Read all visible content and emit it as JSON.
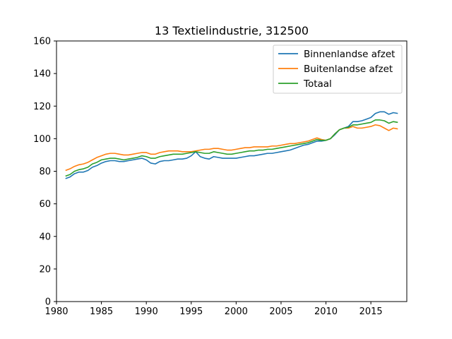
{
  "chart_data": {
    "type": "line",
    "title": "13 Textielindustrie, 312500",
    "xlabel": "",
    "ylabel": "",
    "xlim": [
      1980,
      2019
    ],
    "ylim": [
      0,
      160
    ],
    "x_ticks": [
      1980,
      1985,
      1990,
      1995,
      2000,
      2005,
      2010,
      2015
    ],
    "y_ticks": [
      0,
      20,
      40,
      60,
      80,
      100,
      120,
      140,
      160
    ],
    "grid": false,
    "legend_position": "top-right",
    "series": [
      {
        "name": "Binnenlandse afzet",
        "color": "#1f77b4",
        "points": [
          [
            1981.0,
            75.5
          ],
          [
            1981.5,
            76.5
          ],
          [
            1982.0,
            78.5
          ],
          [
            1982.5,
            79.5
          ],
          [
            1983.0,
            79.5
          ],
          [
            1983.5,
            80.5
          ],
          [
            1984.0,
            82.5
          ],
          [
            1984.5,
            83.5
          ],
          [
            1985.0,
            85.0
          ],
          [
            1985.5,
            86.0
          ],
          [
            1986.0,
            86.5
          ],
          [
            1986.5,
            86.5
          ],
          [
            1987.0,
            86.0
          ],
          [
            1987.5,
            86.0
          ],
          [
            1988.0,
            86.5
          ],
          [
            1988.5,
            87.0
          ],
          [
            1989.0,
            87.5
          ],
          [
            1989.5,
            88.0
          ],
          [
            1990.0,
            87.0
          ],
          [
            1990.5,
            85.0
          ],
          [
            1991.0,
            84.5
          ],
          [
            1991.5,
            86.0
          ],
          [
            1992.0,
            86.5
          ],
          [
            1992.5,
            86.5
          ],
          [
            1993.0,
            87.0
          ],
          [
            1993.5,
            87.5
          ],
          [
            1994.0,
            87.5
          ],
          [
            1994.5,
            88.0
          ],
          [
            1995.0,
            89.5
          ],
          [
            1995.5,
            92.0
          ],
          [
            1996.0,
            89.0
          ],
          [
            1996.5,
            88.0
          ],
          [
            1997.0,
            87.5
          ],
          [
            1997.5,
            89.0
          ],
          [
            1998.0,
            88.5
          ],
          [
            1998.5,
            88.0
          ],
          [
            1999.0,
            88.0
          ],
          [
            1999.5,
            88.0
          ],
          [
            2000.0,
            88.0
          ],
          [
            2000.5,
            88.5
          ],
          [
            2001.0,
            89.0
          ],
          [
            2001.5,
            89.5
          ],
          [
            2002.0,
            89.5
          ],
          [
            2002.5,
            90.0
          ],
          [
            2003.0,
            90.5
          ],
          [
            2003.5,
            91.0
          ],
          [
            2004.0,
            91.0
          ],
          [
            2004.5,
            91.5
          ],
          [
            2005.0,
            92.0
          ],
          [
            2005.5,
            92.5
          ],
          [
            2006.0,
            93.0
          ],
          [
            2006.5,
            94.0
          ],
          [
            2007.0,
            95.0
          ],
          [
            2007.5,
            96.0
          ],
          [
            2008.0,
            96.5
          ],
          [
            2008.5,
            97.5
          ],
          [
            2009.0,
            98.5
          ],
          [
            2009.5,
            98.5
          ],
          [
            2010.0,
            99.0
          ],
          [
            2010.5,
            100.0
          ],
          [
            2011.0,
            102.5
          ],
          [
            2011.5,
            105.5
          ],
          [
            2012.0,
            106.5
          ],
          [
            2012.5,
            107.5
          ],
          [
            2013.0,
            110.5
          ],
          [
            2013.5,
            110.5
          ],
          [
            2014.0,
            111.0
          ],
          [
            2014.5,
            112.0
          ],
          [
            2015.0,
            113.0
          ],
          [
            2015.5,
            115.5
          ],
          [
            2016.0,
            116.5
          ],
          [
            2016.5,
            116.5
          ],
          [
            2017.0,
            115.0
          ],
          [
            2017.5,
            116.0
          ],
          [
            2018.0,
            115.5
          ]
        ]
      },
      {
        "name": "Buitenlandse afzet",
        "color": "#ff7f0e",
        "points": [
          [
            1981.0,
            80.5
          ],
          [
            1981.5,
            81.5
          ],
          [
            1982.0,
            83.0
          ],
          [
            1982.5,
            84.0
          ],
          [
            1983.0,
            84.5
          ],
          [
            1983.5,
            85.5
          ],
          [
            1984.0,
            87.0
          ],
          [
            1984.5,
            88.5
          ],
          [
            1985.0,
            89.5
          ],
          [
            1985.5,
            90.5
          ],
          [
            1986.0,
            91.0
          ],
          [
            1986.5,
            91.0
          ],
          [
            1987.0,
            90.5
          ],
          [
            1987.5,
            90.0
          ],
          [
            1988.0,
            90.0
          ],
          [
            1988.5,
            90.5
          ],
          [
            1989.0,
            91.0
          ],
          [
            1989.5,
            91.5
          ],
          [
            1990.0,
            91.5
          ],
          [
            1990.5,
            90.5
          ],
          [
            1991.0,
            90.5
          ],
          [
            1991.5,
            91.5
          ],
          [
            1992.0,
            92.0
          ],
          [
            1992.5,
            92.5
          ],
          [
            1993.0,
            92.5
          ],
          [
            1993.5,
            92.5
          ],
          [
            1994.0,
            92.0
          ],
          [
            1994.5,
            92.0
          ],
          [
            1995.0,
            92.0
          ],
          [
            1995.5,
            92.5
          ],
          [
            1996.0,
            93.0
          ],
          [
            1996.5,
            93.5
          ],
          [
            1997.0,
            93.5
          ],
          [
            1997.5,
            94.0
          ],
          [
            1998.0,
            94.0
          ],
          [
            1998.5,
            93.5
          ],
          [
            1999.0,
            93.0
          ],
          [
            1999.5,
            93.0
          ],
          [
            2000.0,
            93.5
          ],
          [
            2000.5,
            94.0
          ],
          [
            2001.0,
            94.5
          ],
          [
            2001.5,
            94.5
          ],
          [
            2002.0,
            95.0
          ],
          [
            2002.5,
            95.0
          ],
          [
            2003.0,
            95.0
          ],
          [
            2003.5,
            95.0
          ],
          [
            2004.0,
            95.5
          ],
          [
            2004.5,
            95.5
          ],
          [
            2005.0,
            96.0
          ],
          [
            2005.5,
            96.5
          ],
          [
            2006.0,
            97.0
          ],
          [
            2006.5,
            97.0
          ],
          [
            2007.0,
            97.5
          ],
          [
            2007.5,
            98.0
          ],
          [
            2008.0,
            98.5
          ],
          [
            2008.5,
            99.5
          ],
          [
            2009.0,
            100.5
          ],
          [
            2009.5,
            99.5
          ],
          [
            2010.0,
            99.0
          ],
          [
            2010.5,
            100.0
          ],
          [
            2011.0,
            103.0
          ],
          [
            2011.5,
            105.5
          ],
          [
            2012.0,
            106.5
          ],
          [
            2012.5,
            106.5
          ],
          [
            2013.0,
            107.5
          ],
          [
            2013.5,
            106.5
          ],
          [
            2014.0,
            106.5
          ],
          [
            2014.5,
            107.0
          ],
          [
            2015.0,
            107.5
          ],
          [
            2015.5,
            108.5
          ],
          [
            2016.0,
            108.0
          ],
          [
            2016.5,
            106.5
          ],
          [
            2017.0,
            105.0
          ],
          [
            2017.5,
            106.5
          ],
          [
            2018.0,
            106.0
          ]
        ]
      },
      {
        "name": "Totaal",
        "color": "#2ca02c",
        "points": [
          [
            1981.0,
            77.0
          ],
          [
            1981.5,
            78.0
          ],
          [
            1982.0,
            80.0
          ],
          [
            1982.5,
            81.0
          ],
          [
            1983.0,
            81.5
          ],
          [
            1983.5,
            82.5
          ],
          [
            1984.0,
            84.5
          ],
          [
            1984.5,
            85.5
          ],
          [
            1985.0,
            87.0
          ],
          [
            1985.5,
            87.5
          ],
          [
            1986.0,
            88.0
          ],
          [
            1986.5,
            88.0
          ],
          [
            1987.0,
            87.5
          ],
          [
            1987.5,
            87.0
          ],
          [
            1988.0,
            87.5
          ],
          [
            1988.5,
            88.0
          ],
          [
            1989.0,
            88.5
          ],
          [
            1989.5,
            89.5
          ],
          [
            1990.0,
            89.0
          ],
          [
            1990.5,
            88.0
          ],
          [
            1991.0,
            88.0
          ],
          [
            1991.5,
            89.0
          ],
          [
            1992.0,
            89.5
          ],
          [
            1992.5,
            90.0
          ],
          [
            1993.0,
            90.5
          ],
          [
            1993.5,
            90.5
          ],
          [
            1994.0,
            90.5
          ],
          [
            1994.5,
            91.0
          ],
          [
            1995.0,
            91.5
          ],
          [
            1995.5,
            92.0
          ],
          [
            1996.0,
            91.5
          ],
          [
            1996.5,
            91.0
          ],
          [
            1997.0,
            91.0
          ],
          [
            1997.5,
            92.0
          ],
          [
            1998.0,
            91.5
          ],
          [
            1998.5,
            91.0
          ],
          [
            1999.0,
            90.5
          ],
          [
            1999.5,
            90.5
          ],
          [
            2000.0,
            91.0
          ],
          [
            2000.5,
            91.5
          ],
          [
            2001.0,
            92.0
          ],
          [
            2001.5,
            92.5
          ],
          [
            2002.0,
            92.5
          ],
          [
            2002.5,
            93.0
          ],
          [
            2003.0,
            93.0
          ],
          [
            2003.5,
            93.5
          ],
          [
            2004.0,
            93.5
          ],
          [
            2004.5,
            94.0
          ],
          [
            2005.0,
            94.5
          ],
          [
            2005.5,
            95.0
          ],
          [
            2006.0,
            95.5
          ],
          [
            2006.5,
            96.0
          ],
          [
            2007.0,
            96.5
          ],
          [
            2007.5,
            97.0
          ],
          [
            2008.0,
            97.5
          ],
          [
            2008.5,
            98.5
          ],
          [
            2009.0,
            99.5
          ],
          [
            2009.5,
            99.0
          ],
          [
            2010.0,
            99.0
          ],
          [
            2010.5,
            100.0
          ],
          [
            2011.0,
            103.0
          ],
          [
            2011.5,
            105.5
          ],
          [
            2012.0,
            106.5
          ],
          [
            2012.5,
            107.0
          ],
          [
            2013.0,
            108.5
          ],
          [
            2013.5,
            108.5
          ],
          [
            2014.0,
            109.0
          ],
          [
            2014.5,
            109.5
          ],
          [
            2015.0,
            110.0
          ],
          [
            2015.5,
            111.5
          ],
          [
            2016.0,
            111.5
          ],
          [
            2016.5,
            111.0
          ],
          [
            2017.0,
            109.5
          ],
          [
            2017.5,
            110.5
          ],
          [
            2018.0,
            110.0
          ]
        ]
      }
    ]
  }
}
